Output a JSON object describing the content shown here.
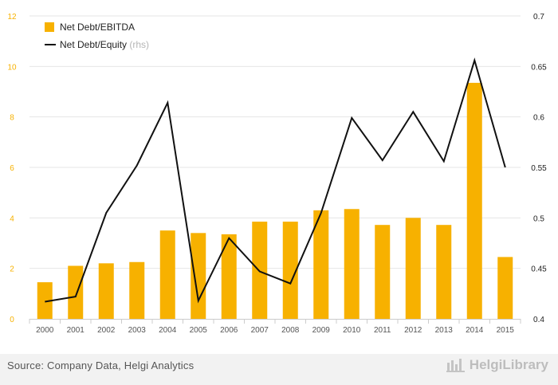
{
  "chart_data": {
    "type": "bar+line",
    "categories": [
      "2000",
      "2001",
      "2002",
      "2003",
      "2004",
      "2005",
      "2006",
      "2007",
      "2008",
      "2009",
      "2010",
      "2011",
      "2012",
      "2013",
      "2014",
      "2015"
    ],
    "series": [
      {
        "name": "Net Debt/EBITDA",
        "type": "bar",
        "axis": "left",
        "color": "#F7B100",
        "values": [
          1.45,
          2.1,
          2.2,
          2.25,
          3.5,
          3.4,
          3.35,
          3.85,
          3.85,
          4.3,
          4.35,
          3.72,
          4.0,
          3.72,
          9.35,
          2.45
        ]
      },
      {
        "name": "Net Debt/Equity",
        "suffix": "(rhs)",
        "type": "line",
        "axis": "right",
        "color": "#111111",
        "values": [
          0.417,
          0.422,
          0.505,
          0.552,
          0.614,
          0.418,
          0.48,
          0.447,
          0.435,
          0.505,
          0.599,
          0.557,
          0.605,
          0.556,
          0.656,
          0.55
        ]
      }
    ],
    "y_left": {
      "min": 0,
      "max": 12,
      "ticks": [
        "0",
        "2",
        "4",
        "6",
        "8",
        "10",
        "12"
      ],
      "tick_color": "#F7B100"
    },
    "y_right": {
      "min": 0.4,
      "max": 0.7,
      "ticks": [
        "0.4",
        "0.45",
        "0.5",
        "0.55",
        "0.6",
        "0.65",
        "0.7"
      ]
    },
    "grid": true,
    "legend_position": "top-left"
  },
  "footer": {
    "source": "Source: Company Data, Helgi Analytics",
    "brand": "HelgiLibrary"
  }
}
